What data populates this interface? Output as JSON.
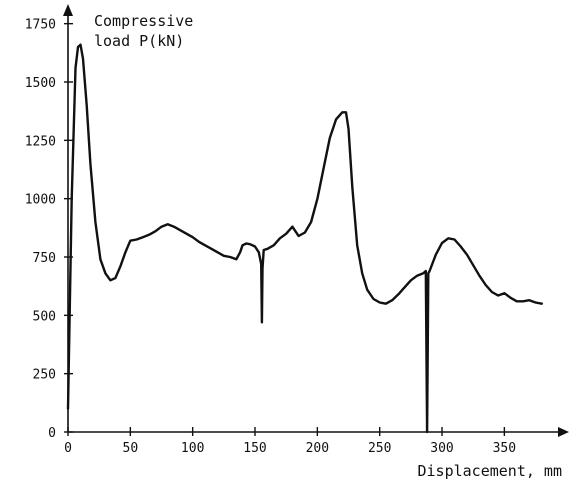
{
  "chart_data": {
    "type": "line",
    "title": "",
    "ylabel": [
      "Compressive",
      "load  P(kN)"
    ],
    "xlabel": "Displacement, mm",
    "xlim": [
      0,
      385
    ],
    "ylim": [
      0,
      1800
    ],
    "x_ticks": [
      0,
      50,
      100,
      150,
      200,
      250,
      300,
      350
    ],
    "y_ticks": [
      0,
      250,
      500,
      750,
      1000,
      1250,
      1500,
      1750
    ],
    "grid": false,
    "legend": "none",
    "line_color": "#111111",
    "series": [
      {
        "x": [
          0,
          3,
          6,
          8,
          10,
          12,
          15,
          18,
          22,
          26,
          30,
          34,
          38,
          42,
          46,
          50,
          55,
          60,
          65,
          70,
          75,
          80,
          85,
          90,
          95,
          100,
          105,
          110,
          115,
          120,
          125,
          130,
          135,
          138,
          140,
          143,
          146,
          150,
          153,
          155,
          155.5,
          156,
          157,
          160,
          165,
          170,
          175,
          180,
          185,
          190,
          195,
          200,
          205,
          210,
          215,
          220,
          223,
          225,
          228,
          232,
          236,
          240,
          245,
          250,
          255,
          260,
          265,
          270,
          275,
          280,
          285,
          287,
          288,
          289,
          290,
          295,
          300,
          305,
          310,
          315,
          320,
          325,
          330,
          335,
          340,
          345,
          350,
          355,
          360,
          365,
          370,
          375,
          380
        ],
        "y": [
          100,
          1000,
          1560,
          1650,
          1660,
          1600,
          1400,
          1150,
          900,
          740,
          680,
          650,
          660,
          710,
          770,
          820,
          825,
          835,
          845,
          860,
          880,
          890,
          880,
          865,
          850,
          835,
          815,
          800,
          785,
          770,
          755,
          750,
          740,
          770,
          800,
          808,
          805,
          795,
          770,
          720,
          470,
          700,
          780,
          785,
          800,
          830,
          850,
          880,
          840,
          855,
          900,
          1000,
          1130,
          1260,
          1340,
          1370,
          1370,
          1300,
          1050,
          800,
          680,
          610,
          570,
          555,
          550,
          565,
          590,
          620,
          650,
          670,
          680,
          690,
          0,
          680,
          690,
          760,
          810,
          830,
          825,
          795,
          760,
          715,
          670,
          630,
          600,
          585,
          595,
          575,
          560,
          560,
          565,
          555,
          550
        ]
      }
    ]
  }
}
